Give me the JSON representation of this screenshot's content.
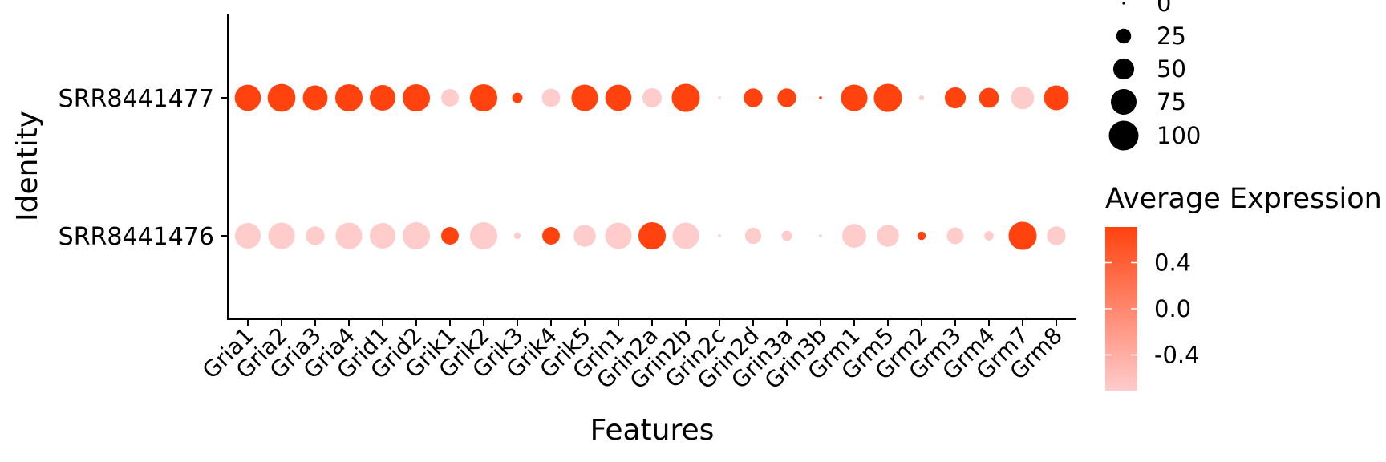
{
  "chart_data": {
    "type": "dot",
    "xlabel": "Features",
    "ylabel": "Identity",
    "categories": [
      "Gria1",
      "Gria2",
      "Gria3",
      "Gria4",
      "Grid1",
      "Grid2",
      "Grik1",
      "Grik2",
      "Grik3",
      "Grik4",
      "Grik5",
      "Grin1",
      "Grin2a",
      "Grin2b",
      "Grin2c",
      "Grin2d",
      "Grin3a",
      "Grin3b",
      "Grm1",
      "Grm5",
      "Grm2",
      "Grm3",
      "Grm4",
      "Grm7",
      "Grm8"
    ],
    "identities": [
      "SRR8441477",
      "SRR8441476"
    ],
    "series": [
      {
        "identity": "SRR8441477",
        "percent_expressed": [
          78,
          88,
          70,
          85,
          75,
          85,
          35,
          85,
          12,
          38,
          80,
          78,
          42,
          90,
          1,
          40,
          40,
          1,
          80,
          90,
          3,
          50,
          45,
          60,
          70
        ],
        "average_expression": [
          0.71,
          0.71,
          0.71,
          0.71,
          0.71,
          0.71,
          -0.71,
          0.71,
          0.71,
          -0.71,
          0.71,
          0.71,
          -0.71,
          0.71,
          -0.71,
          0.71,
          0.71,
          0.71,
          0.71,
          0.71,
          -0.71,
          0.71,
          0.71,
          -0.71,
          0.71
        ]
      },
      {
        "identity": "SRR8441476",
        "percent_expressed": [
          75,
          80,
          40,
          80,
          75,
          85,
          35,
          85,
          5,
          35,
          55,
          80,
          85,
          80,
          1,
          30,
          12,
          1,
          65,
          55,
          8,
          32,
          10,
          90,
          40
        ],
        "average_expression": [
          -0.71,
          -0.71,
          -0.71,
          -0.71,
          -0.71,
          -0.71,
          0.71,
          -0.71,
          -0.71,
          0.71,
          -0.71,
          -0.71,
          0.71,
          -0.71,
          -0.71,
          -0.71,
          -0.71,
          -0.71,
          -0.71,
          -0.71,
          0.71,
          -0.71,
          -0.71,
          0.71,
          -0.71
        ]
      }
    ],
    "size_legend": {
      "title": "",
      "values": [
        0,
        25,
        50,
        75,
        100
      ]
    },
    "color_legend": {
      "title": "Average Expression",
      "ticks": [
        0.4,
        0.0,
        -0.4
      ],
      "tick_labels": [
        "0.4",
        "0.0",
        "-0.4"
      ],
      "range": [
        -0.71,
        0.71
      ],
      "low_color": "#FFCCCC",
      "high_color": "#FF420E"
    },
    "grid": false,
    "legend_position": "right"
  }
}
